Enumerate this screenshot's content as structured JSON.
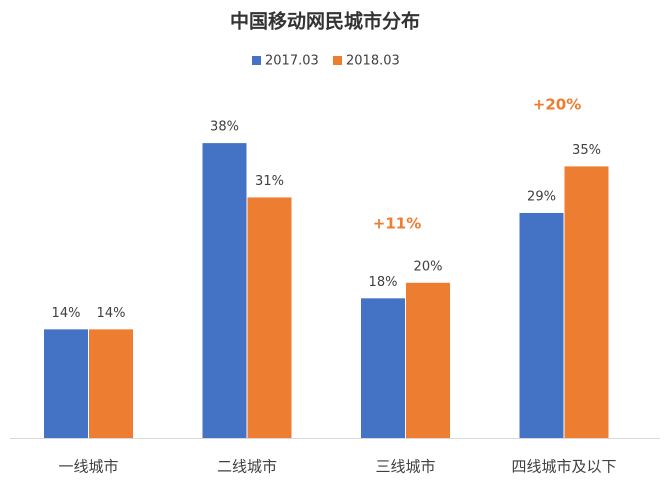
{
  "chart_data": {
    "type": "bar",
    "title": "中国移动网民城市分布",
    "categories": [
      "一线城市",
      "二线城市",
      "三线城市",
      "四线城市及以下"
    ],
    "series": [
      {
        "name": "2017.03",
        "color": "#4472c4",
        "values": [
          14,
          38,
          18,
          29
        ],
        "value_labels": [
          "14%",
          "38%",
          "18%",
          "29%"
        ]
      },
      {
        "name": "2018.03",
        "color": "#ed7d31",
        "values": [
          14,
          31,
          20,
          35
        ],
        "value_labels": [
          "14%",
          "31%",
          "20%",
          "35%"
        ]
      }
    ],
    "annotations": [
      "+11%",
      "+20%"
    ]
  }
}
